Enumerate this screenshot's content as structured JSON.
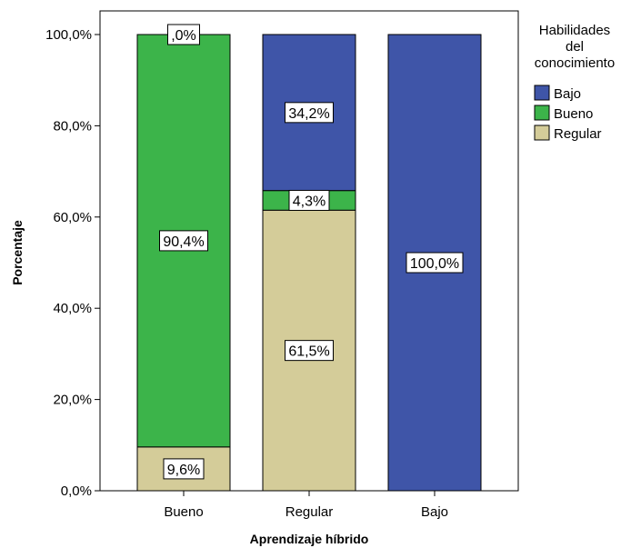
{
  "chart_data": {
    "type": "bar",
    "stacked": true,
    "xlabel": "Aprendizaje híbrido",
    "ylabel": "Porcentaje",
    "categories": [
      "Bueno",
      "Regular",
      "Bajo"
    ],
    "ylim": [
      0,
      100
    ],
    "yticks": [
      {
        "value": 0,
        "label": "0,0%"
      },
      {
        "value": 20,
        "label": "20,0%"
      },
      {
        "value": 40,
        "label": "40,0%"
      },
      {
        "value": 60,
        "label": "60,0%"
      },
      {
        "value": 80,
        "label": "80,0%"
      },
      {
        "value": 100,
        "label": "100,0%"
      }
    ],
    "grid": false,
    "legend": {
      "title": [
        "Habilidades",
        "del",
        "conocimiento"
      ],
      "placement": "right",
      "entries": [
        "Bajo",
        "Bueno",
        "Regular"
      ]
    },
    "series": [
      {
        "name": "Regular",
        "color": "#d4cc99",
        "values": [
          9.6,
          61.5,
          0
        ],
        "labels": [
          "9,6%",
          "61,5%",
          null
        ]
      },
      {
        "name": "Bueno",
        "color": "#3cb44a",
        "values": [
          90.4,
          4.3,
          0
        ],
        "labels": [
          "90,4%",
          "4,3%",
          null
        ]
      },
      {
        "name": "Bajo",
        "color": "#3f55a8",
        "values": [
          0,
          34.2,
          100
        ],
        "labels": [
          ",0%",
          "34,2%",
          "100,0%"
        ]
      }
    ]
  }
}
